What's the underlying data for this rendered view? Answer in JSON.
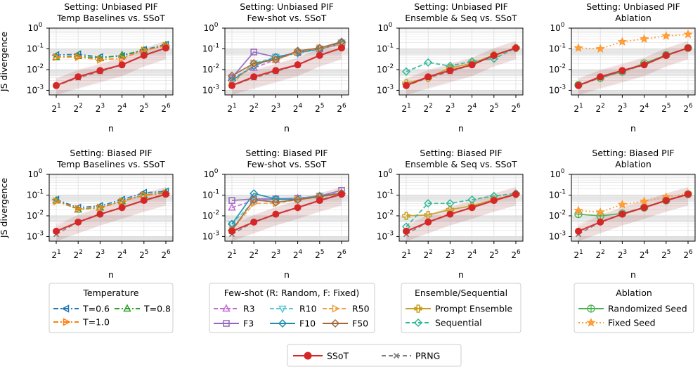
{
  "chart_data": [
    {
      "type": "line",
      "title": "Setting: Unbiased PIF",
      "subtitle": "Temp Baselines vs. SSoT",
      "xlabel": "n",
      "ylabel": "JS divergence",
      "yscale": "log",
      "ylim": [
        0.0006,
        1.0
      ],
      "x": [
        "2^1",
        "2^2",
        "2^3",
        "2^4",
        "2^5",
        "2^6"
      ],
      "series": [
        {
          "name": "T=0.6",
          "values": [
            0.05,
            0.055,
            0.04,
            0.045,
            0.09,
            0.16
          ]
        },
        {
          "name": "T=0.8",
          "values": [
            0.04,
            0.045,
            0.035,
            0.05,
            0.085,
            0.15
          ]
        },
        {
          "name": "T=1.0",
          "values": [
            0.04,
            0.04,
            0.03,
            0.035,
            0.085,
            0.14
          ]
        },
        {
          "name": "SSoT",
          "values": [
            0.0017,
            0.0045,
            0.009,
            0.017,
            0.048,
            0.11
          ]
        },
        {
          "name": "PRNG",
          "values": [
            0.0017,
            0.004,
            0.008,
            0.017,
            0.05,
            0.11
          ]
        }
      ]
    },
    {
      "type": "line",
      "title": "Setting: Unbiased PIF",
      "subtitle": "Few-shot vs. SSoT",
      "xlabel": "n",
      "ylabel": "",
      "yscale": "log",
      "ylim": [
        0.0006,
        1.0
      ],
      "x": [
        "2^1",
        "2^2",
        "2^3",
        "2^4",
        "2^5",
        "2^6"
      ],
      "series": [
        {
          "name": "R3",
          "values": [
            0.004,
            0.012,
            0.03,
            0.07,
            0.1,
            0.2
          ]
        },
        {
          "name": "F3",
          "values": [
            0.004,
            0.07,
            0.04,
            0.065,
            0.1,
            0.17
          ]
        },
        {
          "name": "R10",
          "values": [
            0.0025,
            0.02,
            0.04,
            0.06,
            0.1,
            0.2
          ]
        },
        {
          "name": "F10",
          "values": [
            0.003,
            0.015,
            0.04,
            0.065,
            0.1,
            0.2
          ]
        },
        {
          "name": "R50",
          "values": [
            0.002,
            0.02,
            0.03,
            0.07,
            0.11,
            0.17
          ]
        },
        {
          "name": "F50",
          "values": [
            0.005,
            0.02,
            0.03,
            0.08,
            0.11,
            0.22
          ]
        },
        {
          "name": "SSoT",
          "values": [
            0.0017,
            0.0045,
            0.009,
            0.017,
            0.048,
            0.11
          ]
        },
        {
          "name": "PRNG",
          "values": [
            0.0017,
            0.004,
            0.008,
            0.017,
            0.05,
            0.11
          ]
        }
      ]
    },
    {
      "type": "line",
      "title": "Setting: Unbiased PIF",
      "subtitle": "Ensemble & Seq vs. SSoT",
      "xlabel": "n",
      "ylabel": "",
      "yscale": "log",
      "ylim": [
        0.0006,
        1.0
      ],
      "x": [
        "2^1",
        "2^2",
        "2^3",
        "2^4",
        "2^5",
        "2^6"
      ],
      "series": [
        {
          "name": "Prompt Ensemble",
          "values": [
            0.0022,
            0.004,
            0.012,
            0.02,
            0.05,
            0.11
          ]
        },
        {
          "name": "Sequential",
          "values": [
            0.008,
            0.022,
            0.015,
            0.025,
            0.033,
            0.11
          ]
        },
        {
          "name": "SSoT",
          "values": [
            0.0017,
            0.0045,
            0.009,
            0.017,
            0.048,
            0.11
          ]
        },
        {
          "name": "PRNG",
          "values": [
            0.0017,
            0.004,
            0.008,
            0.017,
            0.05,
            0.11
          ]
        }
      ]
    },
    {
      "type": "line",
      "title": "Setting: Unbiased PIF",
      "subtitle": "Ablation",
      "xlabel": "n",
      "ylabel": "",
      "yscale": "log",
      "ylim": [
        0.0006,
        1.0
      ],
      "x": [
        "2^1",
        "2^2",
        "2^3",
        "2^4",
        "2^5",
        "2^6"
      ],
      "series": [
        {
          "name": "Randomized Seed",
          "values": [
            0.0018,
            0.004,
            0.008,
            0.02,
            0.05,
            0.11
          ]
        },
        {
          "name": "Fixed Seed",
          "values": [
            0.11,
            0.1,
            0.22,
            0.3,
            0.42,
            0.5
          ]
        },
        {
          "name": "SSoT",
          "values": [
            0.0017,
            0.0045,
            0.009,
            0.017,
            0.048,
            0.11
          ]
        },
        {
          "name": "PRNG",
          "values": [
            0.0017,
            0.004,
            0.008,
            0.017,
            0.05,
            0.11
          ]
        }
      ]
    },
    {
      "type": "line",
      "title": "Setting: Biased PIF",
      "subtitle": "Temp Baselines vs. SSoT",
      "xlabel": "n",
      "ylabel": "JS divergence",
      "yscale": "log",
      "ylim": [
        0.0006,
        1.0
      ],
      "x": [
        "2^1",
        "2^2",
        "2^3",
        "2^4",
        "2^5",
        "2^6"
      ],
      "series": [
        {
          "name": "T=0.6",
          "values": [
            0.06,
            0.025,
            0.03,
            0.06,
            0.13,
            0.15
          ]
        },
        {
          "name": "T=0.8",
          "values": [
            0.055,
            0.02,
            0.025,
            0.05,
            0.1,
            0.13
          ]
        },
        {
          "name": "T=1.0",
          "values": [
            0.05,
            0.022,
            0.025,
            0.05,
            0.1,
            0.12
          ]
        },
        {
          "name": "SSoT",
          "values": [
            0.0018,
            0.005,
            0.012,
            0.025,
            0.055,
            0.11
          ]
        },
        {
          "name": "PRNG",
          "values": [
            0.0013,
            0.005,
            0.012,
            0.025,
            0.055,
            0.11
          ]
        }
      ]
    },
    {
      "type": "line",
      "title": "Setting: Biased PIF",
      "subtitle": "Few-shot vs. SSoT",
      "xlabel": "n",
      "ylabel": "",
      "yscale": "log",
      "ylim": [
        0.0006,
        1.0
      ],
      "x": [
        "2^1",
        "2^2",
        "2^3",
        "2^4",
        "2^5",
        "2^6"
      ],
      "series": [
        {
          "name": "R3",
          "values": [
            0.025,
            0.055,
            0.06,
            0.07,
            0.09,
            0.13
          ]
        },
        {
          "name": "F3",
          "values": [
            0.055,
            0.065,
            0.065,
            0.07,
            0.09,
            0.17
          ]
        },
        {
          "name": "R10",
          "values": [
            0.004,
            0.05,
            0.06,
            0.065,
            0.09,
            0.12
          ]
        },
        {
          "name": "F10",
          "values": [
            0.004,
            0.12,
            0.065,
            0.06,
            0.09,
            0.12
          ]
        },
        {
          "name": "R50",
          "values": [
            0.002,
            0.04,
            0.04,
            0.06,
            0.08,
            0.12
          ]
        },
        {
          "name": "F50",
          "values": [
            0.002,
            0.06,
            0.045,
            0.06,
            0.085,
            0.12
          ]
        },
        {
          "name": "SSoT",
          "values": [
            0.0018,
            0.005,
            0.012,
            0.025,
            0.055,
            0.11
          ]
        },
        {
          "name": "PRNG",
          "values": [
            0.0013,
            0.005,
            0.012,
            0.025,
            0.055,
            0.11
          ]
        }
      ]
    },
    {
      "type": "line",
      "title": "Setting: Biased PIF",
      "subtitle": "Ensemble & Seq vs. SSoT",
      "xlabel": "n",
      "ylabel": "",
      "yscale": "log",
      "ylim": [
        0.0006,
        1.0
      ],
      "x": [
        "2^1",
        "2^2",
        "2^3",
        "2^4",
        "2^5",
        "2^6"
      ],
      "series": [
        {
          "name": "Prompt Ensemble",
          "values": [
            0.01,
            0.011,
            0.02,
            0.03,
            0.06,
            0.11
          ]
        },
        {
          "name": "Sequential",
          "values": [
            0.003,
            0.04,
            0.04,
            0.06,
            0.09,
            0.12
          ]
        },
        {
          "name": "SSoT",
          "values": [
            0.0018,
            0.005,
            0.012,
            0.025,
            0.055,
            0.11
          ]
        },
        {
          "name": "PRNG",
          "values": [
            0.0013,
            0.005,
            0.012,
            0.025,
            0.055,
            0.11
          ]
        }
      ]
    },
    {
      "type": "line",
      "title": "Setting: Biased PIF",
      "subtitle": "Ablation",
      "xlabel": "n",
      "ylabel": "",
      "yscale": "log",
      "ylim": [
        0.0006,
        1.0
      ],
      "x": [
        "2^1",
        "2^2",
        "2^3",
        "2^4",
        "2^5",
        "2^6"
      ],
      "series": [
        {
          "name": "Randomized Seed",
          "values": [
            0.012,
            0.01,
            0.013,
            0.025,
            0.055,
            0.11
          ]
        },
        {
          "name": "Fixed Seed",
          "values": [
            0.018,
            0.015,
            0.035,
            0.05,
            0.08,
            0.12
          ]
        },
        {
          "name": "SSoT",
          "values": [
            0.0018,
            0.005,
            0.012,
            0.025,
            0.055,
            0.11
          ]
        },
        {
          "name": "PRNG",
          "values": [
            0.0013,
            0.005,
            0.012,
            0.025,
            0.055,
            0.11
          ]
        }
      ]
    }
  ],
  "styles": {
    "SSoT": {
      "color": "#d62728",
      "dash": "",
      "marker": "circle"
    },
    "PRNG": {
      "color": "#7f7f7f",
      "dash": "6,4",
      "marker": "x"
    },
    "T=0.6": {
      "color": "#1f77b4",
      "dash": "7,3,2,3",
      "marker": "tri-left"
    },
    "T=0.8": {
      "color": "#2ca02c",
      "dash": "7,3,2,3",
      "marker": "tri-up"
    },
    "T=1.0": {
      "color": "#ff7f0e",
      "dash": "7,3,2,3",
      "marker": "tri-right"
    },
    "R3": {
      "color": "#c46ad6",
      "dash": "6,3",
      "marker": "tri-up"
    },
    "F3": {
      "color": "#9467bd",
      "dash": "",
      "marker": "square"
    },
    "R10": {
      "color": "#5bc8d8",
      "dash": "6,3",
      "marker": "tri-down"
    },
    "F10": {
      "color": "#1f8fa8",
      "dash": "",
      "marker": "diamond"
    },
    "R50": {
      "color": "#f0a040",
      "dash": "6,3",
      "marker": "tri-right"
    },
    "F50": {
      "color": "#a0683a",
      "dash": "",
      "marker": "diamond"
    },
    "Prompt Ensemble": {
      "color": "#c8a020",
      "dash": "",
      "marker": "plus"
    },
    "Sequential": {
      "color": "#30b898",
      "dash": "6,3",
      "marker": "diamond"
    },
    "Randomized Seed": {
      "color": "#4cb050",
      "dash": "",
      "marker": "pluscircle"
    },
    "Fixed Seed": {
      "color": "#ff9a30",
      "dash": "2,3",
      "marker": "star"
    }
  },
  "legends": [
    {
      "title": "Temperature",
      "entries": [
        "T=0.6",
        "T=0.8",
        "T=1.0"
      ]
    },
    {
      "title": "Few-shot (R: Random, F: Fixed)",
      "entries": [
        "R3",
        "R10",
        "R50",
        "F3",
        "F10",
        "F50"
      ]
    },
    {
      "title": "Ensemble/Sequential",
      "entries": [
        "Prompt Ensemble",
        "Sequential"
      ]
    },
    {
      "title": "Ablation",
      "entries": [
        "Randomized Seed",
        "Fixed Seed"
      ]
    },
    {
      "title": "",
      "entries": [
        "SSoT",
        "PRNG"
      ]
    }
  ],
  "x_tick_base": "2",
  "x_tick_exps": [
    "1",
    "2",
    "3",
    "4",
    "5",
    "6"
  ],
  "y_tick_base": "10",
  "y_tick_exps": [
    "-3",
    "-2",
    "-1",
    "0"
  ],
  "y_ticks": [
    0.001,
    0.01,
    0.1,
    1
  ]
}
